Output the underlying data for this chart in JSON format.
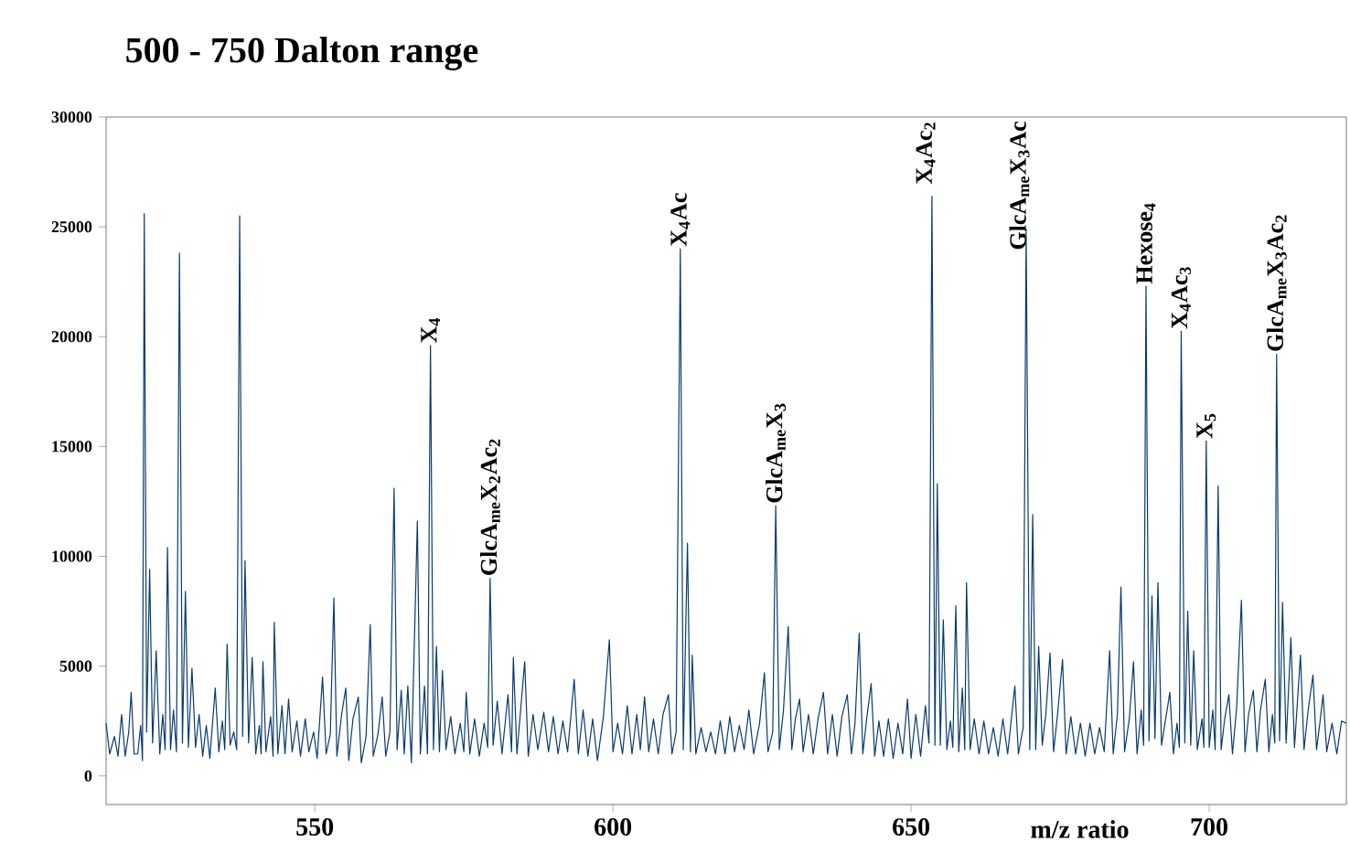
{
  "chart_data": {
    "type": "line",
    "title": "500 - 750 Dalton range",
    "xlabel": "m/z ratio",
    "color": "#0a3a6e",
    "xlim": [
      515,
      723
    ],
    "ylim": [
      -1300,
      30000
    ],
    "xticks": [
      550,
      600,
      650,
      700
    ],
    "yticks": [
      0,
      5000,
      10000,
      15000,
      20000,
      25000,
      30000
    ],
    "x": [
      515.0,
      515.6,
      516.4,
      517.0,
      517.6,
      518.2,
      518.8,
      519.2,
      519.7,
      520.3,
      520.8,
      521.1,
      521.4,
      521.8,
      522.3,
      522.8,
      523.4,
      524.0,
      524.5,
      524.9,
      525.3,
      525.8,
      526.3,
      526.8,
      527.3,
      527.8,
      528.3,
      528.8,
      529.4,
      530.0,
      530.6,
      531.2,
      531.8,
      532.4,
      533.3,
      533.9,
      534.5,
      534.9,
      535.3,
      535.8,
      536.4,
      536.9,
      537.4,
      537.9,
      538.3,
      538.9,
      539.5,
      540.1,
      540.7,
      541.0,
      541.3,
      541.8,
      542.6,
      543.0,
      543.2,
      543.8,
      544.5,
      545.0,
      545.6,
      546.2,
      547.0,
      547.6,
      548.4,
      549.0,
      549.8,
      550.4,
      551.3,
      551.9,
      552.6,
      553.2,
      553.7,
      554.5,
      555.2,
      555.7,
      556.4,
      557.3,
      557.8,
      558.6,
      559.3,
      559.8,
      560.6,
      561.3,
      561.9,
      562.6,
      563.3,
      563.8,
      564.5,
      565.0,
      565.6,
      566.2,
      567.2,
      567.7,
      568.4,
      568.9,
      569.4,
      569.9,
      570.4,
      570.9,
      571.4,
      572.0,
      572.8,
      573.5,
      574.4,
      575.0,
      575.4,
      576.0,
      576.8,
      577.6,
      578.4,
      579.0,
      579.4,
      579.9,
      580.6,
      581.4,
      582.4,
      583.0,
      583.3,
      583.9,
      585.2,
      585.8,
      586.6,
      587.4,
      588.4,
      589.2,
      590.0,
      590.8,
      591.6,
      592.4,
      593.5,
      594.2,
      595.0,
      595.8,
      596.6,
      597.4,
      598.4,
      599.4,
      600.0,
      600.8,
      601.6,
      602.4,
      603.2,
      604.0,
      604.6,
      605.3,
      606.0,
      606.8,
      607.6,
      608.4,
      609.3,
      609.9,
      610.6,
      611.3,
      611.8,
      612.5,
      613.0,
      613.3,
      613.9,
      614.8,
      615.6,
      616.4,
      617.2,
      618.0,
      618.8,
      619.6,
      620.4,
      621.2,
      622.0,
      622.8,
      623.6,
      624.6,
      625.4,
      626.0,
      626.8,
      627.3,
      627.9,
      628.6,
      629.4,
      630.0,
      630.6,
      631.3,
      631.9,
      632.8,
      633.6,
      634.4,
      635.3,
      636.0,
      636.8,
      637.6,
      638.4,
      639.3,
      640.0,
      640.6,
      641.3,
      641.9,
      642.6,
      643.3,
      643.9,
      644.6,
      645.4,
      646.2,
      647.0,
      647.8,
      648.6,
      649.4,
      650.0,
      650.8,
      651.6,
      652.4,
      653.0,
      653.5,
      654.0,
      654.4,
      654.9,
      655.4,
      656.0,
      656.6,
      657.0,
      657.5,
      658.0,
      658.6,
      659.0,
      659.3,
      659.9,
      660.6,
      661.4,
      662.2,
      663.0,
      663.8,
      664.6,
      665.4,
      666.2,
      667.4,
      668.0,
      668.8,
      669.3,
      669.9,
      670.4,
      670.9,
      671.4,
      672.0,
      672.6,
      673.3,
      673.9,
      674.6,
      675.4,
      676.0,
      676.8,
      677.6,
      678.4,
      679.2,
      680.0,
      680.8,
      681.6,
      682.4,
      683.3,
      683.9,
      684.6,
      685.2,
      685.8,
      686.6,
      687.3,
      687.9,
      688.6,
      689.0,
      689.4,
      689.9,
      690.4,
      690.9,
      691.4,
      692.0,
      692.7,
      693.4,
      694.0,
      694.6,
      695.0,
      695.3,
      695.9,
      696.4,
      696.9,
      697.4,
      698.0,
      698.8,
      699.1,
      699.5,
      700.0,
      700.6,
      701.0,
      701.5,
      702.0,
      702.6,
      703.3,
      703.9,
      704.6,
      705.4,
      706.0,
      706.6,
      707.4,
      708.0,
      708.6,
      709.4,
      710.0,
      710.6,
      711.0,
      711.3,
      711.8,
      712.3,
      712.9,
      713.7,
      714.3,
      715.3,
      715.9,
      716.6,
      717.4,
      718.0,
      718.6,
      719.1,
      719.7,
      720.6,
      721.4,
      722.2,
      723.0
    ],
    "values": [
      2400,
      1000,
      1800,
      900,
      2800,
      900,
      2000,
      3800,
      1000,
      1000,
      2300,
      700,
      25600,
      2000,
      9400,
      1500,
      5700,
      1000,
      2800,
      1200,
      10400,
      1200,
      3000,
      1100,
      23800,
      1500,
      8400,
      1300,
      4900,
      1300,
      2800,
      900,
      2300,
      800,
      4000,
      1100,
      2500,
      1200,
      6000,
      1400,
      2000,
      1200,
      25500,
      1800,
      9800,
      1500,
      5400,
      1000,
      2300,
      1000,
      5200,
      1100,
      2700,
      900,
      7000,
      1000,
      3200,
      1000,
      3500,
      1100,
      2500,
      900,
      2600,
      1100,
      2000,
      800,
      4500,
      1000,
      1900,
      8100,
      900,
      2800,
      4000,
      700,
      2600,
      3600,
      600,
      1800,
      6900,
      900,
      1900,
      3600,
      900,
      2000,
      13100,
      1200,
      3900,
      1000,
      4100,
      600,
      11600,
      1000,
      4100,
      1000,
      19600,
      1200,
      5900,
      1100,
      4800,
      1200,
      2700,
      1000,
      2400,
      1100,
      3800,
      1000,
      2600,
      900,
      2400,
      1300,
      9000,
      1400,
      3400,
      1000,
      3700,
      1100,
      5400,
      1000,
      5200,
      900,
      2800,
      1200,
      2900,
      1100,
      2700,
      1000,
      2500,
      1100,
      4400,
      1000,
      3000,
      900,
      2600,
      700,
      2700,
      6200,
      1100,
      2400,
      1000,
      3200,
      1000,
      2800,
      1200,
      3600,
      1100,
      2600,
      1000,
      2800,
      3700,
      1000,
      2000,
      24000,
      1200,
      10600,
      1100,
      5500,
      1000,
      2200,
      1100,
      2000,
      1000,
      2500,
      1000,
      2700,
      1100,
      2300,
      1200,
      3000,
      1000,
      2400,
      4700,
      1100,
      2000,
      12300,
      1200,
      3000,
      6800,
      1200,
      2600,
      3500,
      1100,
      2800,
      1000,
      2600,
      3800,
      1000,
      2800,
      900,
      2700,
      3700,
      1000,
      2400,
      6500,
      1000,
      2700,
      4200,
      900,
      2500,
      900,
      2600,
      800,
      2400,
      1000,
      3500,
      800,
      2800,
      900,
      3200,
      1500,
      26400,
      1400,
      13300,
      1400,
      7100,
      1200,
      2500,
      1300,
      7750,
      1100,
      4000,
      1200,
      8800,
      1200,
      2600,
      1000,
      2500,
      1000,
      2200,
      900,
      2600,
      1000,
      4100,
      1000,
      2200,
      24900,
      1200,
      11900,
      1200,
      5900,
      1400,
      2800,
      5600,
      1100,
      2900,
      5300,
      1000,
      2700,
      1000,
      2400,
      900,
      2400,
      1000,
      2200,
      1100,
      5700,
      1000,
      2800,
      8600,
      1100,
      2600,
      5200,
      1000,
      3000,
      1400,
      22300,
      1600,
      8200,
      1700,
      8800,
      1400,
      2600,
      3800,
      1000,
      2400,
      1300,
      20250,
      1500,
      7500,
      1400,
      5700,
      1200,
      2600,
      1300,
      15250,
      1300,
      3000,
      1200,
      13200,
      1200,
      2600,
      3700,
      1000,
      3100,
      8000,
      1100,
      2800,
      3900,
      1100,
      3000,
      4400,
      1100,
      2800,
      1500,
      19200,
      1600,
      7900,
      1500,
      6300,
      1300,
      5500,
      1200,
      3000,
      4600,
      1200,
      2500,
      3700,
      1100,
      2400,
      1000,
      2500,
      2400
    ],
    "annotations": [
      {
        "text": "X$_{4}$",
        "x": 569.4,
        "y": 19600
      },
      {
        "text": "GlcA$_{me}$X$_{2}$Ac$_{2}$",
        "x": 579.4,
        "y": 9000
      },
      {
        "text": "X$_{4}$Ac",
        "x": 611.3,
        "y": 24000
      },
      {
        "text": "GlcA$_{me}$X$_{3}$",
        "x": 627.3,
        "y": 12300
      },
      {
        "text": "X$_{4}$Ac$_{2}$",
        "x": 653.5,
        "y": 26400
      },
      {
        "text": "GlcA$_{me}$X$_{3}$Ac",
        "x": 669.3,
        "y": 24900
      },
      {
        "text": "Hexose$_{4}$",
        "x": 689.4,
        "y": 22300
      },
      {
        "text": "X$_{4}$Ac$_{3}$",
        "x": 695.3,
        "y": 20250
      },
      {
        "text": "X$_{5}$",
        "x": 699.5,
        "y": 15250
      },
      {
        "text": "GlcA$_{me}$X$_{3}$Ac$_{2}$",
        "x": 711.3,
        "y": 19200
      }
    ]
  }
}
